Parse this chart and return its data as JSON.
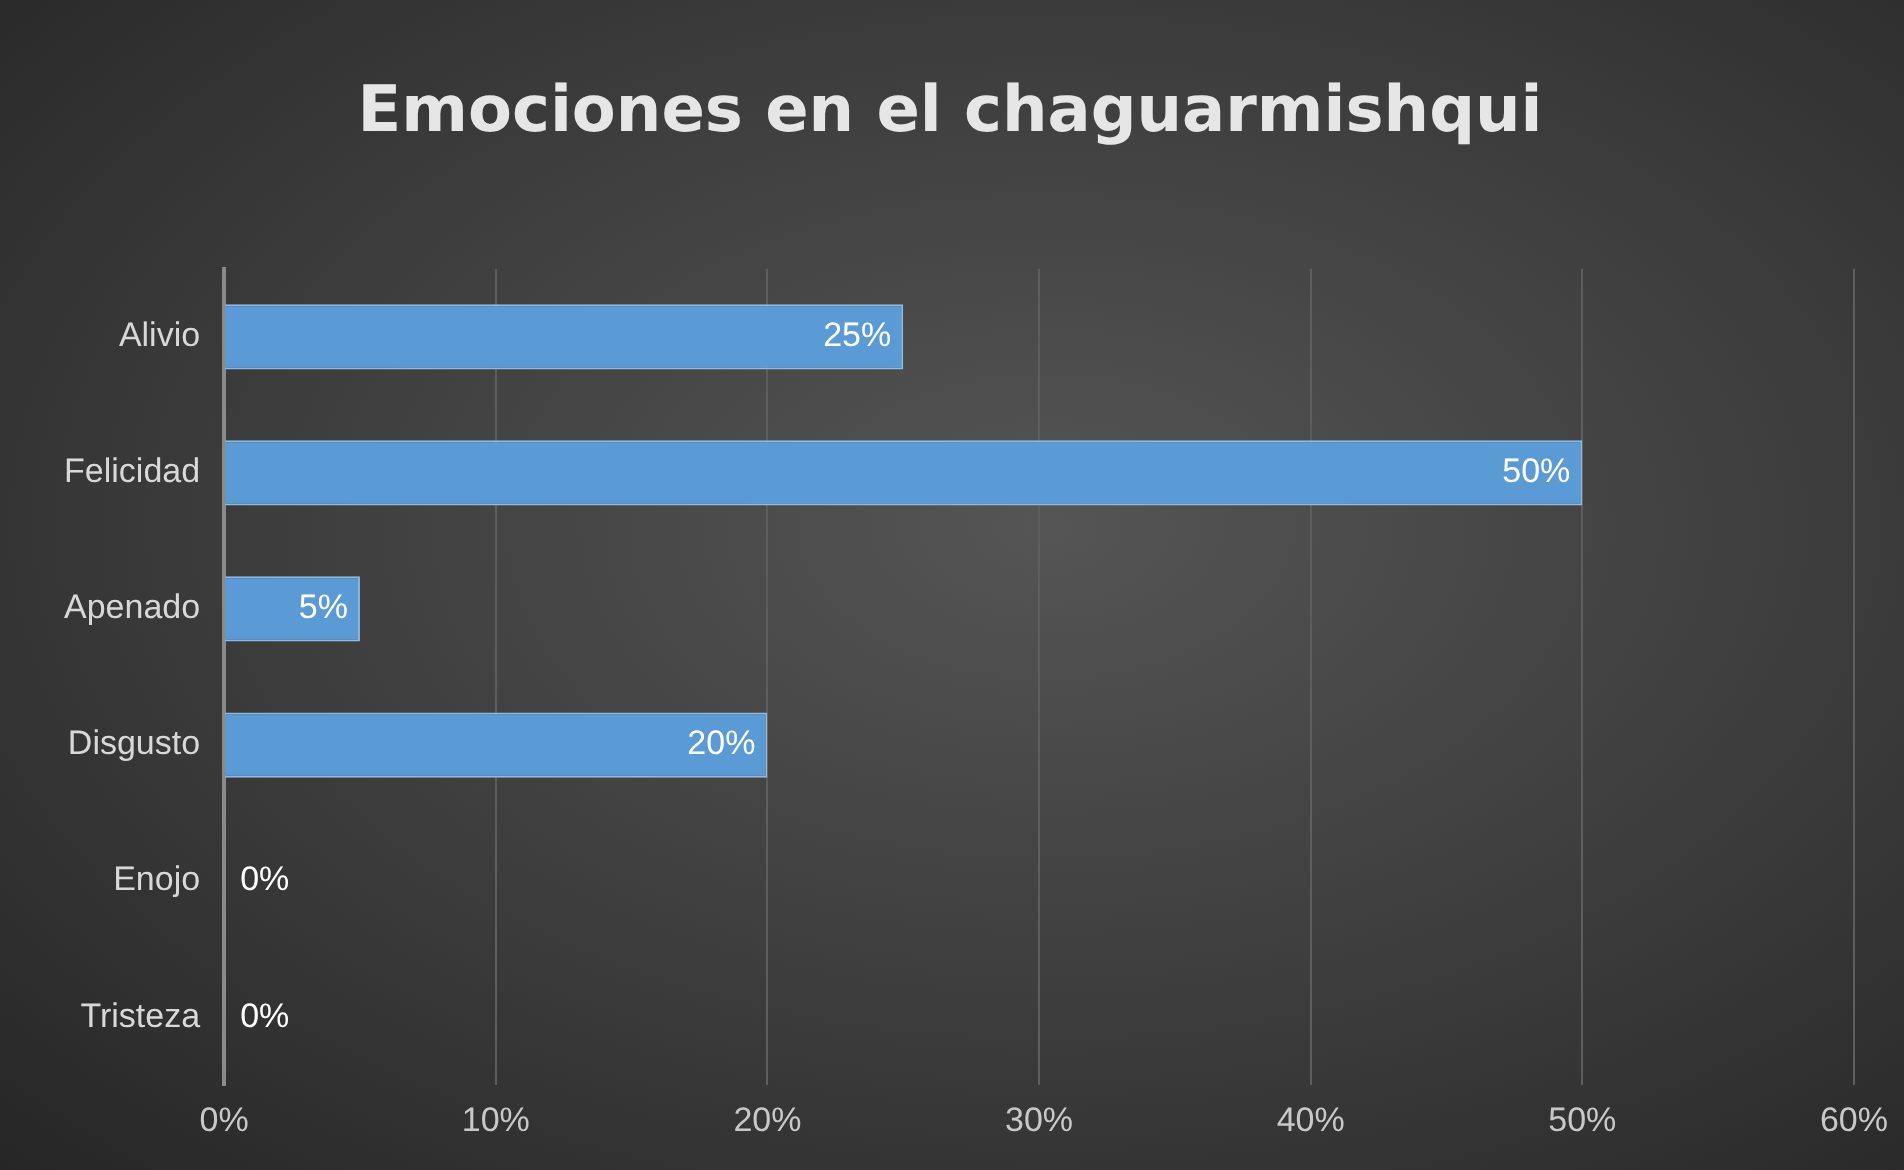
{
  "chart_data": {
    "type": "bar",
    "orientation": "horizontal",
    "title": "Emociones en el chaguarmishqui",
    "categories": [
      "Alivio",
      "Felicidad",
      "Apenado",
      "Disgusto",
      "Enojo",
      "Tristeza"
    ],
    "values": [
      25,
      50,
      5,
      20,
      0,
      0
    ],
    "value_labels": [
      "25%",
      "50%",
      "5%",
      "20%",
      "0%",
      "0%"
    ],
    "color": "#5b9bd5",
    "xlim": [
      0,
      60
    ],
    "xticks": [
      {
        "value": 0,
        "label": "0%"
      },
      {
        "value": 10,
        "label": "10%"
      },
      {
        "value": 20,
        "label": "20%"
      },
      {
        "value": 30,
        "label": "30%"
      },
      {
        "value": 40,
        "label": "40%"
      },
      {
        "value": 50,
        "label": "50%"
      },
      {
        "value": 60,
        "label": "60%"
      }
    ],
    "grid": "x",
    "legend": false
  }
}
